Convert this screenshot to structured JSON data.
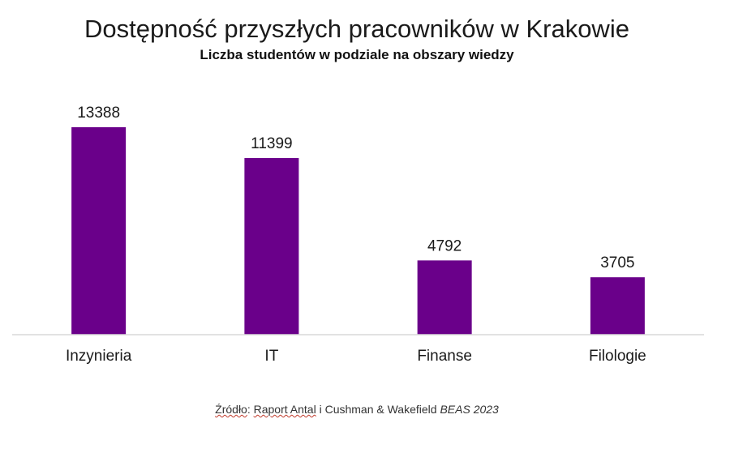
{
  "chart_data": {
    "type": "bar",
    "title": "Dostępność przyszłych pracowników w Krakowie",
    "subtitle": "Liczba studentów w podziale na obszary wiedzy",
    "categories": [
      "Inzynieria",
      "IT",
      "Finanse",
      "Filologie"
    ],
    "values": [
      13388,
      11399,
      4792,
      3705
    ],
    "ylim": [
      0,
      14000
    ],
    "grid": false,
    "legend": "none",
    "colors": {
      "bar": "#6a008a",
      "axis": "#d9d9d9"
    }
  },
  "source": {
    "part1": "Źródło",
    "part2": ": ",
    "part3": "Raport Antal",
    "part4": " i Cushman & Wakefield ",
    "part5": "BEAS 2023"
  }
}
